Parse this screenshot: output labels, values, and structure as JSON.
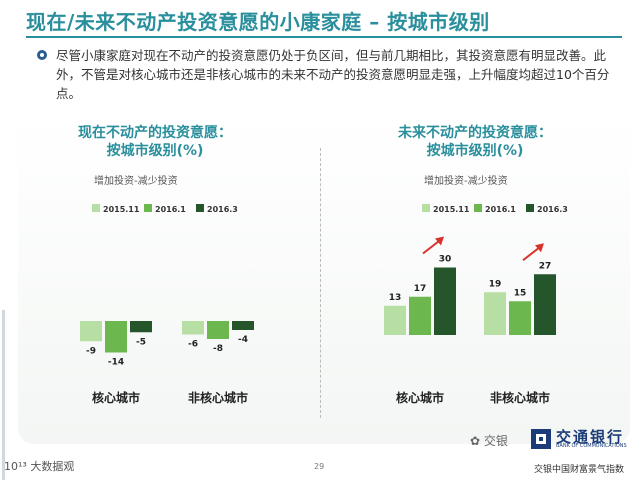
{
  "page": {
    "title": "现在/未来不动产投资意愿的小康家庭 – 按城市级别",
    "intro": "尽管小康家庭对现在不动产的投资意愿仍处于负区间，但与前几期相比，其投资意愿有明显改善。此外，不管是对核心城市还是非核心城市的未来不动产的投资意愿明显走强，上升幅度均超过10个百分点。",
    "page_number": "29",
    "footer_left": "10¹³ 大数据观",
    "bank_name": "交通银行",
    "bank_en": "BANK OF COMMUNICATIONS",
    "bank_tagline": "交银中国财富景气指数",
    "wechat_label": "交银"
  },
  "colors": {
    "title": "#2a8f9c",
    "s2015": "#b7dfa3",
    "s2016_1": "#6db74f",
    "s2016_3": "#25552a",
    "arrow": "#d9322b"
  },
  "chart_data": [
    {
      "type": "bar",
      "title_line1": "现在不动产的投资意愿：",
      "title_line2": "按城市级别(%)",
      "subtitle": "增加投资-减少投资",
      "categories": [
        "核心城市",
        "非核心城市"
      ],
      "series": [
        {
          "name": "2015.11",
          "values": [
            -9,
            -6
          ]
        },
        {
          "name": "2016.1",
          "values": [
            -14,
            -8
          ]
        },
        {
          "name": "2016.3",
          "values": [
            -5,
            -4
          ]
        }
      ],
      "value_labels": [
        [
          "-9",
          "-14",
          "-5"
        ],
        [
          "-6",
          "-8",
          "-4"
        ]
      ],
      "legend_position": "top",
      "ylim": [
        -16,
        32
      ]
    },
    {
      "type": "bar",
      "title_line1": "未来不动产的投资意愿：",
      "title_line2": "按城市级别(%)",
      "subtitle": "增加投资-减少投资",
      "categories": [
        "核心城市",
        "非核心城市"
      ],
      "series": [
        {
          "name": "2015.11",
          "values": [
            13,
            19
          ]
        },
        {
          "name": "2016.1",
          "values": [
            17,
            15
          ]
        },
        {
          "name": "2016.3",
          "values": [
            30,
            27
          ]
        }
      ],
      "value_labels": [
        [
          "13",
          "17",
          "30"
        ],
        [
          "19",
          "15",
          "27"
        ]
      ],
      "legend_position": "top",
      "ylim": [
        -16,
        32
      ],
      "annotation": "upward red arrows above the 2016.3 bars"
    }
  ]
}
